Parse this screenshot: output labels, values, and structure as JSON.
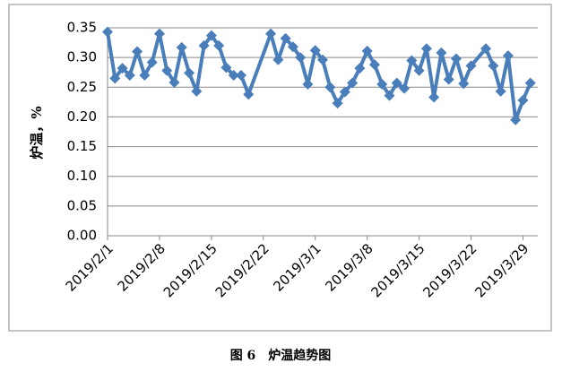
{
  "chart_data": {
    "type": "line",
    "y_label": "炉温，%",
    "caption": "图 6　炉温趋势图",
    "x": [
      "2019/2/1",
      "2019/2/2",
      "2019/2/3",
      "2019/2/4",
      "2019/2/5",
      "2019/2/6",
      "2019/2/7",
      "2019/2/8",
      "2019/2/9",
      "2019/2/10",
      "2019/2/11",
      "2019/2/12",
      "2019/2/13",
      "2019/2/14",
      "2019/2/15",
      "2019/2/16",
      "2019/2/17",
      "2019/2/18",
      "2019/2/19",
      "2019/2/20",
      "2019/2/23",
      "2019/2/24",
      "2019/2/25",
      "2019/2/26",
      "2019/2/27",
      "2019/2/28",
      "2019/3/1",
      "2019/3/2",
      "2019/3/3",
      "2019/3/4",
      "2019/3/5",
      "2019/3/6",
      "2019/3/7",
      "2019/3/8",
      "2019/3/9",
      "2019/3/10",
      "2019/3/11",
      "2019/3/12",
      "2019/3/13",
      "2019/3/14",
      "2019/3/15",
      "2019/3/16",
      "2019/3/17",
      "2019/3/18",
      "2019/3/19",
      "2019/3/20",
      "2019/3/21",
      "2019/3/22",
      "2019/3/24",
      "2019/3/25",
      "2019/3/26",
      "2019/3/27",
      "2019/3/28",
      "2019/3/29",
      "2019/3/30"
    ],
    "series": [
      {
        "color": "#4a7ebb",
        "values": [
          0.343,
          0.265,
          0.282,
          0.27,
          0.31,
          0.27,
          0.292,
          0.34,
          0.278,
          0.258,
          0.317,
          0.274,
          0.243,
          0.32,
          0.337,
          0.32,
          0.283,
          0.27,
          0.27,
          0.238,
          0.34,
          0.296,
          0.332,
          0.318,
          0.3,
          0.255,
          0.312,
          0.296,
          0.25,
          0.223,
          0.242,
          0.257,
          0.282,
          0.311,
          0.288,
          0.255,
          0.236,
          0.257,
          0.248,
          0.295,
          0.278,
          0.315,
          0.233,
          0.308,
          0.263,
          0.298,
          0.256,
          0.286,
          0.315,
          0.286,
          0.243,
          0.303,
          0.195,
          0.228,
          0.257
        ]
      }
    ],
    "xlim": [
      "2019/2/1",
      "2019/3/31"
    ],
    "xticks": [
      "2019/2/1",
      "2019/2/8",
      "2019/2/15",
      "2019/2/22",
      "2019/3/1",
      "2019/3/8",
      "2019/3/15",
      "2019/3/22",
      "2019/3/29"
    ],
    "ylim": [
      0,
      0.35
    ],
    "yticks": [
      {
        "value": 0,
        "label": "0.00"
      },
      {
        "value": 0.05,
        "label": "0.05"
      },
      {
        "value": 0.1,
        "label": "0.10"
      },
      {
        "value": 0.15,
        "label": "0.15"
      },
      {
        "value": 0.2,
        "label": "0.20"
      },
      {
        "value": 0.25,
        "label": "0.25"
      },
      {
        "value": 0.3,
        "label": "0.30"
      },
      {
        "value": 0.35,
        "label": "0.35"
      }
    ],
    "grid": true
  }
}
